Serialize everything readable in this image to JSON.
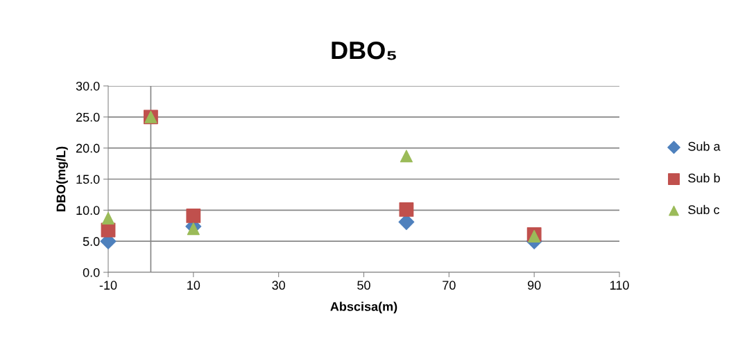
{
  "chart_data": {
    "type": "scatter",
    "title": "DBO₅",
    "xlabel": "Abscisa(m)",
    "ylabel": "DBO(mg/L)",
    "x": [
      -10,
      0,
      10,
      60,
      90
    ],
    "series": [
      {
        "name": "Sub a",
        "color": "#4f81bd",
        "marker": "diamond",
        "values": [
          5.0,
          null,
          7.4,
          8.1,
          5.0
        ]
      },
      {
        "name": "Sub b",
        "color": "#c0504d",
        "marker": "square",
        "values": [
          6.8,
          25.0,
          9.1,
          10.1,
          6.1
        ]
      },
      {
        "name": "Sub c",
        "color": "#9bbb59",
        "marker": "triangle",
        "values": [
          8.7,
          25.0,
          7.0,
          18.7,
          5.8
        ]
      }
    ],
    "xlim": [
      -10,
      110
    ],
    "xticks": [
      -10,
      10,
      30,
      50,
      70,
      90,
      110
    ],
    "ylim": [
      0,
      30
    ],
    "yticks": [
      {
        "value": 0,
        "label": "0.0"
      },
      {
        "value": 5,
        "label": "5.0"
      },
      {
        "value": 10,
        "label": "10.0"
      },
      {
        "value": 15,
        "label": "15.0"
      },
      {
        "value": 20,
        "label": "20.0"
      },
      {
        "value": 25,
        "label": "25.0"
      },
      {
        "value": 30,
        "label": "30.0"
      }
    ],
    "ref_lines": [
      {
        "axis": "x",
        "value": 0,
        "color": "#868686"
      }
    ],
    "grid": "y",
    "legend": "right"
  }
}
